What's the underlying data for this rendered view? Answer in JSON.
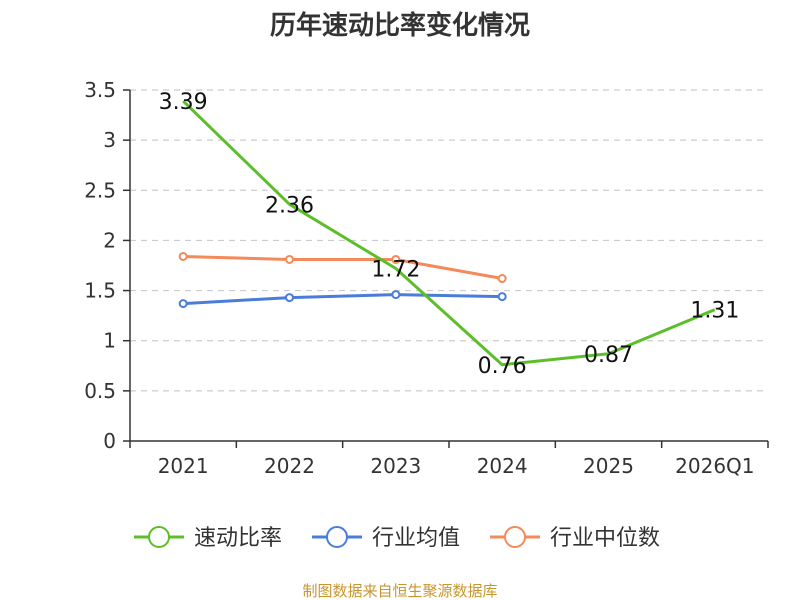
{
  "chart_data": {
    "type": "line",
    "title": "历年速动比率变化情况",
    "categories": [
      "2021",
      "2022",
      "2023",
      "2024",
      "2025",
      "2026Q1"
    ],
    "ylim": [
      0,
      3.5
    ],
    "yticks": [
      "0",
      "0.5",
      "1",
      "1.5",
      "2",
      "2.5",
      "3",
      "3.5"
    ],
    "grid": true,
    "legend_position": "bottom",
    "series": [
      {
        "name": "速动比率",
        "color": "#5cbf2a",
        "values": [
          3.39,
          2.36,
          1.72,
          0.76,
          0.87,
          1.31
        ],
        "labels": [
          "3.39",
          "2.36",
          "1.72",
          "0.76",
          "0.87",
          "1.31"
        ],
        "markers": false
      },
      {
        "name": "行业均值",
        "color": "#4a7ddb",
        "values": [
          1.37,
          1.43,
          1.46,
          1.44,
          null,
          null
        ],
        "markers": true
      },
      {
        "name": "行业中位数",
        "color": "#f28a5a",
        "values": [
          1.84,
          1.81,
          1.81,
          1.62,
          null,
          null
        ],
        "markers": true
      }
    ],
    "source": "制图数据来自恒生聚源数据库"
  }
}
